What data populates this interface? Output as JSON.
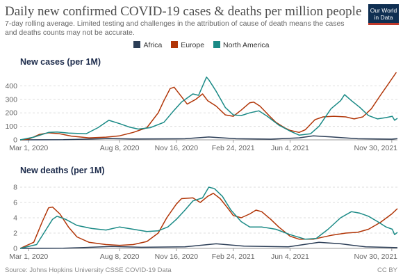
{
  "header": {
    "title": "Daily new confirmed COVID-19 cases & deaths per million people",
    "subtitle": "7-day rolling average. Limited testing and challenges in the attribution of cause of death means the cases and deaths counts may not be accurate.",
    "logo_line1": "Our World",
    "logo_line2": "in Data"
  },
  "legend": [
    {
      "name": "Africa",
      "color": "#2c3e57"
    },
    {
      "name": "Europe",
      "color": "#b13507"
    },
    {
      "name": "North America",
      "color": "#1a8a86"
    }
  ],
  "footer": {
    "source": "Source: Johns Hopkins University CSSE COVID-19 Data",
    "license": "CC BY"
  },
  "chart_data": [
    {
      "type": "line",
      "title": "New cases (per 1M)",
      "xlabel": "",
      "ylabel": "",
      "xlim": [
        "2020-02-15",
        "2021-12-10"
      ],
      "ylim": [
        0,
        500
      ],
      "yticks": [
        0,
        100,
        200,
        300,
        400
      ],
      "xticks": [
        "2020-03-01",
        "2020-08-08",
        "2020-11-16",
        "2021-02-24",
        "2021-06-04",
        "2021-11-30"
      ],
      "xtick_labels": [
        "Mar 1, 2020",
        "Aug 8, 2020",
        "Nov 16, 2020",
        "Feb 24, 2021",
        "Jun 4, 2021",
        "Nov 30, 2021"
      ],
      "grid": true,
      "series": [
        {
          "name": "Africa",
          "points": [
            [
              "2020-02-15",
              0
            ],
            [
              "2020-05-01",
              1
            ],
            [
              "2020-07-20",
              10
            ],
            [
              "2020-09-01",
              6
            ],
            [
              "2020-12-01",
              8
            ],
            [
              "2021-01-12",
              21
            ],
            [
              "2021-03-01",
              8
            ],
            [
              "2021-05-01",
              5
            ],
            [
              "2021-06-20",
              15
            ],
            [
              "2021-07-15",
              30
            ],
            [
              "2021-08-15",
              22
            ],
            [
              "2021-10-01",
              8
            ],
            [
              "2021-11-30",
              5
            ],
            [
              "2021-12-10",
              9
            ]
          ]
        },
        {
          "name": "Europe",
          "points": [
            [
              "2020-02-15",
              0
            ],
            [
              "2020-03-01",
              5
            ],
            [
              "2020-03-20",
              40
            ],
            [
              "2020-04-05",
              52
            ],
            [
              "2020-04-25",
              45
            ],
            [
              "2020-05-15",
              28
            ],
            [
              "2020-06-15",
              15
            ],
            [
              "2020-07-15",
              20
            ],
            [
              "2020-08-08",
              30
            ],
            [
              "2020-09-01",
              55
            ],
            [
              "2020-09-25",
              90
            ],
            [
              "2020-10-15",
              200
            ],
            [
              "2020-10-25",
              290
            ],
            [
              "2020-11-05",
              380
            ],
            [
              "2020-11-12",
              390
            ],
            [
              "2020-11-25",
              320
            ],
            [
              "2020-12-05",
              265
            ],
            [
              "2020-12-20",
              300
            ],
            [
              "2021-01-01",
              340
            ],
            [
              "2021-01-10",
              290
            ],
            [
              "2021-01-25",
              250
            ],
            [
              "2021-02-10",
              185
            ],
            [
              "2021-02-24",
              175
            ],
            [
              "2021-03-10",
              220
            ],
            [
              "2021-03-25",
              275
            ],
            [
              "2021-04-01",
              280
            ],
            [
              "2021-04-12",
              250
            ],
            [
              "2021-04-28",
              180
            ],
            [
              "2021-05-10",
              130
            ],
            [
              "2021-05-25",
              90
            ],
            [
              "2021-06-04",
              70
            ],
            [
              "2021-06-20",
              55
            ],
            [
              "2021-07-01",
              75
            ],
            [
              "2021-07-18",
              150
            ],
            [
              "2021-08-01",
              170
            ],
            [
              "2021-08-20",
              175
            ],
            [
              "2021-09-10",
              170
            ],
            [
              "2021-09-25",
              155
            ],
            [
              "2021-10-10",
              170
            ],
            [
              "2021-10-25",
              230
            ],
            [
              "2021-11-10",
              330
            ],
            [
              "2021-11-25",
              420
            ],
            [
              "2021-12-08",
              500
            ]
          ]
        },
        {
          "name": "North America",
          "points": [
            [
              "2020-02-15",
              0
            ],
            [
              "2020-03-10",
              20
            ],
            [
              "2020-04-05",
              55
            ],
            [
              "2020-04-20",
              58
            ],
            [
              "2020-05-10",
              50
            ],
            [
              "2020-06-10",
              45
            ],
            [
              "2020-07-01",
              90
            ],
            [
              "2020-07-20",
              145
            ],
            [
              "2020-08-08",
              120
            ],
            [
              "2020-08-25",
              95
            ],
            [
              "2020-09-10",
              80
            ],
            [
              "2020-10-01",
              90
            ],
            [
              "2020-10-25",
              130
            ],
            [
              "2020-11-10",
              210
            ],
            [
              "2020-11-25",
              280
            ],
            [
              "2020-12-05",
              310
            ],
            [
              "2020-12-15",
              340
            ],
            [
              "2020-12-25",
              330
            ],
            [
              "2021-01-08",
              465
            ],
            [
              "2021-01-12",
              445
            ],
            [
              "2021-01-25",
              360
            ],
            [
              "2021-02-10",
              240
            ],
            [
              "2021-02-24",
              185
            ],
            [
              "2021-03-10",
              180
            ],
            [
              "2021-03-25",
              200
            ],
            [
              "2021-04-10",
              215
            ],
            [
              "2021-04-25",
              175
            ],
            [
              "2021-05-15",
              110
            ],
            [
              "2021-06-04",
              65
            ],
            [
              "2021-06-20",
              35
            ],
            [
              "2021-07-10",
              45
            ],
            [
              "2021-07-25",
              100
            ],
            [
              "2021-08-15",
              230
            ],
            [
              "2021-09-01",
              290
            ],
            [
              "2021-09-08",
              335
            ],
            [
              "2021-09-20",
              290
            ],
            [
              "2021-10-05",
              240
            ],
            [
              "2021-10-20",
              180
            ],
            [
              "2021-11-05",
              155
            ],
            [
              "2021-11-20",
              165
            ],
            [
              "2021-12-01",
              175
            ],
            [
              "2021-12-05",
              145
            ],
            [
              "2021-12-10",
              160
            ]
          ]
        }
      ]
    },
    {
      "type": "line",
      "title": "New deaths (per 1M)",
      "xlabel": "",
      "ylabel": "",
      "xlim": [
        "2020-02-15",
        "2021-12-10"
      ],
      "ylim": [
        0,
        9
      ],
      "yticks": [
        0,
        2,
        4,
        6,
        8
      ],
      "xticks": [
        "2020-03-01",
        "2020-08-08",
        "2020-11-16",
        "2021-02-24",
        "2021-06-04",
        "2021-11-30"
      ],
      "xtick_labels": [
        "Mar 1, 2020",
        "Aug 8, 2020",
        "Nov 16, 2020",
        "Feb 24, 2021",
        "Jun 4, 2021",
        "Nov 30, 2021"
      ],
      "grid": true,
      "series": [
        {
          "name": "Africa",
          "points": [
            [
              "2020-02-15",
              0
            ],
            [
              "2020-05-01",
              0.02
            ],
            [
              "2020-07-25",
              0.25
            ],
            [
              "2020-09-15",
              0.15
            ],
            [
              "2020-12-01",
              0.2
            ],
            [
              "2021-01-25",
              0.6
            ],
            [
              "2021-03-15",
              0.3
            ],
            [
              "2021-06-01",
              0.2
            ],
            [
              "2021-07-25",
              0.8
            ],
            [
              "2021-09-01",
              0.6
            ],
            [
              "2021-10-15",
              0.2
            ],
            [
              "2021-12-10",
              0.1
            ]
          ]
        },
        {
          "name": "Europe",
          "points": [
            [
              "2020-02-15",
              0
            ],
            [
              "2020-03-10",
              0.8
            ],
            [
              "2020-03-25",
              3.5
            ],
            [
              "2020-04-05",
              5.3
            ],
            [
              "2020-04-12",
              5.4
            ],
            [
              "2020-04-25",
              4.5
            ],
            [
              "2020-05-10",
              2.8
            ],
            [
              "2020-05-25",
              1.5
            ],
            [
              "2020-06-15",
              0.8
            ],
            [
              "2020-07-15",
              0.5
            ],
            [
              "2020-08-08",
              0.4
            ],
            [
              "2020-09-01",
              0.5
            ],
            [
              "2020-09-25",
              0.9
            ],
            [
              "2020-10-15",
              2.0
            ],
            [
              "2020-10-30",
              4.0
            ],
            [
              "2020-11-16",
              5.8
            ],
            [
              "2020-11-25",
              6.5
            ],
            [
              "2020-12-15",
              6.6
            ],
            [
              "2020-12-28",
              6.0
            ],
            [
              "2021-01-10",
              6.8
            ],
            [
              "2021-01-20",
              7.2
            ],
            [
              "2021-02-01",
              6.5
            ],
            [
              "2021-02-15",
              5.2
            ],
            [
              "2021-02-24",
              4.3
            ],
            [
              "2021-03-10",
              4.0
            ],
            [
              "2021-03-25",
              4.5
            ],
            [
              "2021-04-05",
              5.0
            ],
            [
              "2021-04-15",
              4.8
            ],
            [
              "2021-05-01",
              3.8
            ],
            [
              "2021-05-15",
              2.8
            ],
            [
              "2021-06-04",
              1.6
            ],
            [
              "2021-06-20",
              1.2
            ],
            [
              "2021-07-15",
              1.2
            ],
            [
              "2021-08-15",
              1.7
            ],
            [
              "2021-09-10",
              2.0
            ],
            [
              "2021-10-01",
              2.1
            ],
            [
              "2021-10-20",
              2.5
            ],
            [
              "2021-11-10",
              3.4
            ],
            [
              "2021-11-30",
              4.5
            ],
            [
              "2021-12-10",
              5.2
            ]
          ]
        },
        {
          "name": "North America",
          "points": [
            [
              "2020-02-15",
              0
            ],
            [
              "2020-03-15",
              0.5
            ],
            [
              "2020-04-01",
              2.5
            ],
            [
              "2020-04-12",
              3.8
            ],
            [
              "2020-04-20",
              4.2
            ],
            [
              "2020-05-05",
              3.8
            ],
            [
              "2020-05-25",
              3.0
            ],
            [
              "2020-06-20",
              2.6
            ],
            [
              "2020-07-15",
              2.4
            ],
            [
              "2020-08-08",
              2.8
            ],
            [
              "2020-09-01",
              2.5
            ],
            [
              "2020-09-25",
              2.2
            ],
            [
              "2020-10-15",
              2.3
            ],
            [
              "2020-11-01",
              2.8
            ],
            [
              "2020-11-16",
              3.8
            ],
            [
              "2020-12-01",
              5.0
            ],
            [
              "2020-12-15",
              6.2
            ],
            [
              "2021-01-01",
              6.6
            ],
            [
              "2021-01-12",
              8.0
            ],
            [
              "2021-01-22",
              7.8
            ],
            [
              "2021-02-05",
              6.8
            ],
            [
              "2021-02-20",
              5.0
            ],
            [
              "2021-03-10",
              3.5
            ],
            [
              "2021-03-25",
              2.8
            ],
            [
              "2021-04-15",
              2.8
            ],
            [
              "2021-05-10",
              2.5
            ],
            [
              "2021-06-04",
              1.8
            ],
            [
              "2021-07-01",
              1.2
            ],
            [
              "2021-07-20",
              1.3
            ],
            [
              "2021-08-10",
              2.5
            ],
            [
              "2021-09-01",
              4.0
            ],
            [
              "2021-09-20",
              4.8
            ],
            [
              "2021-10-05",
              4.6
            ],
            [
              "2021-10-20",
              4.2
            ],
            [
              "2021-11-05",
              3.5
            ],
            [
              "2021-11-20",
              2.8
            ],
            [
              "2021-12-01",
              2.5
            ],
            [
              "2021-12-05",
              1.8
            ],
            [
              "2021-12-10",
              2.1
            ]
          ]
        }
      ]
    }
  ]
}
